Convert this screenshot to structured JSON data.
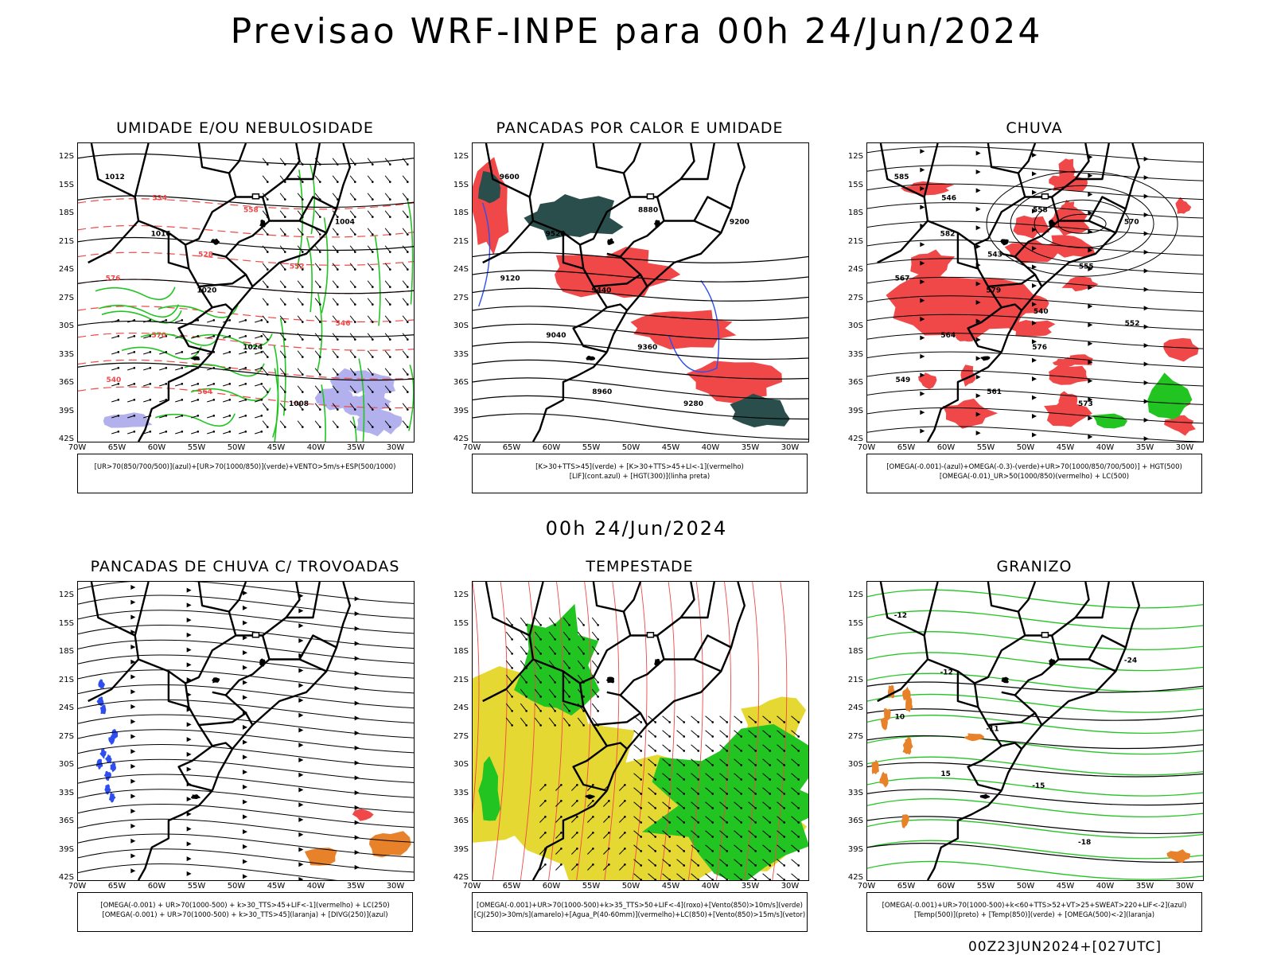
{
  "title": "Previsao WRF-INPE  para 00h 24/Jun/2024",
  "middle_title": "00h 24/Jun/2024",
  "footer": "00Z23JUN2024+[027UTC]",
  "lat_ticks": [
    "12S",
    "15S",
    "18S",
    "21S",
    "24S",
    "27S",
    "30S",
    "33S",
    "36S",
    "39S",
    "42S"
  ],
  "lon_ticks": [
    "70W",
    "65W",
    "60W",
    "55W",
    "50W",
    "45W",
    "40W",
    "35W",
    "30W"
  ],
  "colors": {
    "red": "#f04848",
    "green": "#22c422",
    "dark": "#2a4e4c",
    "blue": "#2e4ef0",
    "yellow": "#e6d832",
    "orange": "#e8822a",
    "lavender": "#b3b0ee"
  },
  "panels": [
    {
      "name": "umidade",
      "title": "UMIDADE E/OU NEBULOSIDADE",
      "legend": [
        "[UR>70(850/700/500)](azul)+[UR>70(1000/850)](verde)+VENTO>5m/s+ESP(500/1000)"
      ],
      "contour_labels": [
        "1012",
        "1016",
        "1020",
        "1024",
        "1008",
        "1004",
        "576",
        "570",
        "564",
        "558",
        "552",
        "546",
        "540",
        "534",
        "528"
      ]
    },
    {
      "name": "pancadas-calor",
      "title": "PANCADAS POR CALOR E UMIDADE",
      "legend": [
        "[K>30+TTS>45](verde) + [K>30+TTS>45+LI<-1](vermelho)",
        "[LIF](cont.azul) + [HGT(300)](linha preta)"
      ],
      "contour_labels": [
        "9600",
        "9520",
        "9440",
        "9360",
        "9280",
        "9200",
        "9120",
        "9040",
        "8960",
        "8880"
      ]
    },
    {
      "name": "chuva",
      "title": "CHUVA",
      "legend": [
        "[OMEGA(-0.001)-(azul)+OMEGA(-0.3)-(verde)+UR>70(1000/850/700/500)] + HGT(500)",
        "[OMEGA(-0.01)_UR>50(1000/850)(vermelho) + LC(500)"
      ],
      "contour_labels": [
        "585",
        "582",
        "579",
        "576",
        "573",
        "570",
        "567",
        "564",
        "561",
        "558",
        "555",
        "552",
        "549",
        "546",
        "543",
        "540"
      ]
    },
    {
      "name": "trovoadas",
      "title": "PANCADAS DE CHUVA C/ TROVOADAS",
      "legend": [
        "[OMEGA(-0.001) + UR>70(1000-500) + k>30_TTS>45+LIF<-1](vermelho) + LC(250)",
        "[OMEGA(-0.001) + UR>70(1000-500) + k>30_TTS>45](laranja) + [DIVG(250)](azul)"
      ],
      "contour_labels": []
    },
    {
      "name": "tempestade",
      "title": "TEMPESTADE",
      "legend": [
        "[OMEGA(-0.001)+UR>70(1000-500)+k>35_TTS>50+LIF<-4](roxo)+[Vento(850)>10m/s](verde)",
        "[CJ(250)>30m/s](amarelo)+[Agua_P(40-60mm)](vermelho)+LC(850)+[Vento(850)>15m/s](vetor)"
      ],
      "contour_labels": []
    },
    {
      "name": "granizo",
      "title": "GRANIZO",
      "legend": [
        "[OMEGA(-0.001)+UR>70(1000-500)+k<60+TTS>52+VT>25+SWEAT>220+LIF<-2](azul)",
        "[Temp(500)](preto) + [Temp(850)](verde) + [OMEGA(500)<-2](laranja)"
      ],
      "contour_labels": [
        "-12",
        "-12",
        "-11",
        "-15",
        "-18",
        "-24",
        "10",
        "15"
      ]
    }
  ]
}
